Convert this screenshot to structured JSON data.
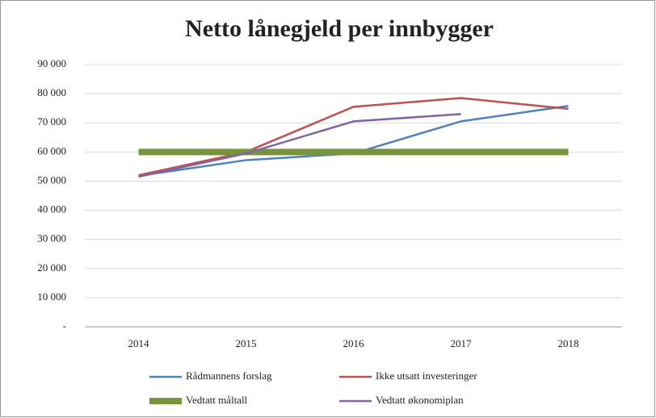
{
  "chart_data": {
    "type": "line",
    "title": "Netto lånegjeld per innbygger",
    "categories": [
      "2014",
      "2015",
      "2016",
      "2017",
      "2018"
    ],
    "series": [
      {
        "name": "Rådmannens forslag",
        "color": "#4f81bd",
        "values": [
          51800,
          57200,
          59500,
          70500,
          75800
        ]
      },
      {
        "name": "Ikke utsatt investeringer",
        "color": "#c0504d",
        "values": [
          52000,
          60000,
          75500,
          78500,
          74800
        ]
      },
      {
        "name": "Vedtatt måltall",
        "color": "#77933c",
        "values": [
          60000,
          60000,
          60000,
          60000,
          60000
        ]
      },
      {
        "name": "Vedtatt økonomiplan",
        "color": "#8064a2",
        "values": [
          51500,
          59500,
          70500,
          73000,
          null
        ]
      }
    ],
    "ylim": [
      0,
      90000
    ],
    "yticks": [
      {
        "value": 0,
        "label": "-"
      },
      {
        "value": 10000,
        "label": "10 000"
      },
      {
        "value": 20000,
        "label": "20 000"
      },
      {
        "value": 30000,
        "label": "30 000"
      },
      {
        "value": 40000,
        "label": "40 000"
      },
      {
        "value": 50000,
        "label": "50 000"
      },
      {
        "value": 60000,
        "label": "60 000"
      },
      {
        "value": 70000,
        "label": "70 000"
      },
      {
        "value": 80000,
        "label": "80 000"
      },
      {
        "value": 90000,
        "label": "90 000"
      }
    ],
    "grid": true
  }
}
